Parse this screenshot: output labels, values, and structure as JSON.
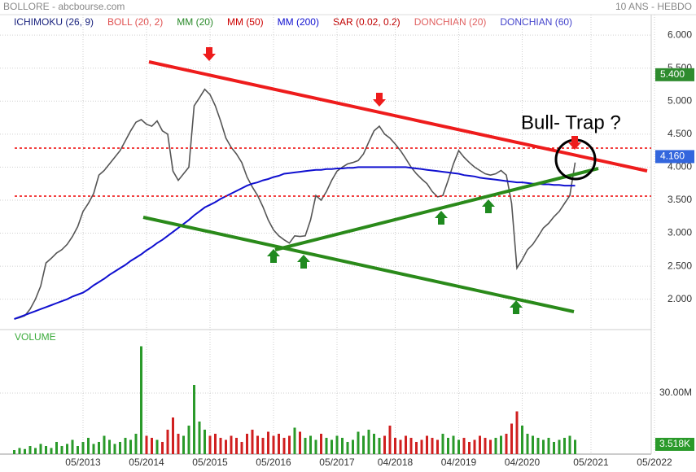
{
  "chart_data": {
    "type": "line",
    "title": "BOLLORE - abcbourse.com",
    "subtitle": "10 ANS - HEBDO",
    "annotation": "Bull- Trap ?",
    "indicators": [
      {
        "name": "ICHIMOKU (26, 9)",
        "color": "#1a237e"
      },
      {
        "name": "BOLL (20, 2)",
        "color": "#e05050"
      },
      {
        "name": "MM (20)",
        "color": "#2a8a2a"
      },
      {
        "name": "MM (50)",
        "color": "#cc0000"
      },
      {
        "name": "MM (200)",
        "color": "#1010d0"
      },
      {
        "name": "SAR (0.02, 0.2)",
        "color": "#c00000"
      },
      {
        "name": "DONCHIAN (20)",
        "color": "#e06060"
      },
      {
        "name": "DONCHIAN (60)",
        "color": "#4444cc"
      }
    ],
    "x": [
      "04/2012",
      "05/2012",
      "06/2012",
      "07/2012",
      "08/2012",
      "09/2012",
      "10/2012",
      "11/2012",
      "12/2012",
      "01/2013",
      "02/2013",
      "03/2013",
      "04/2013",
      "05/2013",
      "06/2013",
      "07/2013",
      "08/2013",
      "09/2013",
      "10/2013",
      "11/2013",
      "12/2013",
      "01/2014",
      "02/2014",
      "03/2014",
      "04/2014",
      "05/2014",
      "06/2014",
      "07/2014",
      "08/2014",
      "09/2014",
      "10/2014",
      "11/2014",
      "12/2014",
      "01/2015",
      "02/2015",
      "03/2015",
      "04/2015",
      "05/2015",
      "06/2015",
      "07/2015",
      "08/2015",
      "09/2015",
      "10/2015",
      "11/2015",
      "12/2015",
      "01/2016",
      "02/2016",
      "03/2016",
      "04/2016",
      "05/2016",
      "06/2016",
      "07/2016",
      "08/2016",
      "09/2016",
      "10/2016",
      "11/2016",
      "12/2016",
      "01/2017",
      "02/2017",
      "03/2017",
      "04/2017",
      "05/2017",
      "06/2017",
      "07/2017",
      "08/2017",
      "09/2017",
      "10/2017",
      "11/2017",
      "12/2017",
      "01/2018",
      "02/2018",
      "03/2018",
      "04/2018",
      "05/2018",
      "06/2018",
      "07/2018",
      "08/2018",
      "09/2018",
      "10/2018",
      "11/2018",
      "12/2018",
      "01/2019",
      "02/2019",
      "03/2019",
      "04/2019",
      "05/2019",
      "06/2019",
      "07/2019",
      "08/2019",
      "09/2019",
      "10/2019",
      "11/2019",
      "12/2019",
      "01/2020",
      "02/2020",
      "03/2020",
      "04/2020",
      "05/2020",
      "06/2020",
      "07/2020",
      "08/2020",
      "09/2020",
      "10/2020",
      "11/2020",
      "12/2020",
      "01/2021",
      "02/2021"
    ],
    "series": [
      {
        "color": "#555555",
        "values": [
          1.7,
          1.72,
          1.75,
          1.85,
          2.0,
          2.2,
          2.55,
          2.62,
          2.7,
          2.75,
          2.83,
          2.95,
          3.1,
          3.33,
          3.45,
          3.6,
          3.88,
          3.95,
          4.05,
          4.15,
          4.25,
          4.4,
          4.55,
          4.68,
          4.72,
          4.65,
          4.62,
          4.7,
          4.55,
          4.5,
          3.94,
          3.8,
          3.9,
          4.0,
          4.93,
          5.05,
          5.18,
          5.1,
          4.93,
          4.7,
          4.44,
          4.3,
          4.2,
          4.07,
          3.85,
          3.7,
          3.57,
          3.4,
          3.2,
          3.05,
          2.96,
          2.9,
          2.85,
          2.96,
          2.95,
          2.96,
          3.2,
          3.57,
          3.5,
          3.63,
          3.8,
          3.94,
          4.0,
          4.05,
          4.07,
          4.1,
          4.2,
          4.38,
          4.55,
          4.62,
          4.5,
          4.44,
          4.35,
          4.25,
          4.13,
          4.0,
          3.9,
          3.82,
          3.75,
          3.63,
          3.55,
          3.57,
          3.8,
          4.05,
          4.25,
          4.15,
          4.07,
          4.0,
          3.95,
          3.9,
          3.88,
          3.9,
          3.95,
          3.88,
          3.45,
          2.47,
          2.6,
          2.75,
          2.83,
          2.95,
          3.08,
          3.15,
          3.25,
          3.33,
          3.45,
          3.57,
          4.07
        ]
      },
      {
        "color": "#1010d0",
        "values": [
          1.7,
          1.73,
          1.76,
          1.79,
          1.82,
          1.85,
          1.88,
          1.91,
          1.94,
          1.97,
          2.0,
          2.04,
          2.07,
          2.1,
          2.15,
          2.21,
          2.26,
          2.31,
          2.37,
          2.42,
          2.47,
          2.52,
          2.58,
          2.63,
          2.68,
          2.74,
          2.79,
          2.85,
          2.9,
          2.96,
          3.02,
          3.08,
          3.14,
          3.2,
          3.27,
          3.33,
          3.39,
          3.43,
          3.47,
          3.52,
          3.56,
          3.6,
          3.64,
          3.68,
          3.72,
          3.75,
          3.77,
          3.8,
          3.82,
          3.85,
          3.87,
          3.9,
          3.91,
          3.92,
          3.93,
          3.94,
          3.95,
          3.96,
          3.96,
          3.97,
          3.97,
          3.98,
          3.98,
          3.99,
          3.99,
          4.0,
          4.0,
          4.0,
          4.0,
          4.0,
          4.0,
          4.0,
          4.0,
          4.0,
          4.0,
          3.99,
          3.98,
          3.97,
          3.96,
          3.95,
          3.94,
          3.93,
          3.92,
          3.91,
          3.9,
          3.88,
          3.87,
          3.86,
          3.84,
          3.83,
          3.82,
          3.81,
          3.8,
          3.79,
          3.78,
          3.77,
          3.77,
          3.76,
          3.75,
          3.75,
          3.74,
          3.74,
          3.73,
          3.73,
          3.72,
          3.72,
          3.72
        ]
      }
    ],
    "ylim": [
      1.54,
      6.31
    ],
    "yticks": [
      {
        "value": 2,
        "label": "2.000"
      },
      {
        "value": 2.5,
        "label": "2.500"
      },
      {
        "value": 3,
        "label": "3.000"
      },
      {
        "value": 3.5,
        "label": "3.500"
      },
      {
        "value": 4,
        "label": "4.000"
      },
      {
        "value": 4.5,
        "label": "4.500"
      },
      {
        "value": 5,
        "label": "5.000"
      },
      {
        "value": 5.5,
        "label": "5.500"
      },
      {
        "value": 6,
        "label": "6.000"
      }
    ],
    "xticks": [
      "05/2013",
      "05/2014",
      "05/2015",
      "05/2016",
      "05/2017",
      "04/2018",
      "04/2019",
      "04/2020",
      "05/2021",
      "05/2022"
    ],
    "grid": true,
    "last_labels": [
      {
        "value": 5.4,
        "label": "5.400",
        "color": "#2e8b2e"
      },
      {
        "value": 4.16,
        "label": "4.160",
        "color": "#3366dd"
      }
    ],
    "volume": {
      "label": "VOLUME",
      "values": [
        2000000.0,
        3000000.0,
        2500000.0,
        4000000.0,
        3000000.0,
        5000000.0,
        4000000.0,
        3000000.0,
        6000000.0,
        4000000.0,
        5000000.0,
        7000000.0,
        4000000.0,
        6000000.0,
        8000000.0,
        5000000.0,
        6000000.0,
        9000000.0,
        7000000.0,
        5000000.0,
        6000000.0,
        8000000.0,
        7000000.0,
        10000000.0,
        53000000.0,
        9000000.0,
        8000000.0,
        7000000.0,
        6000000.0,
        12000000.0,
        18000000.0,
        10000000.0,
        9000000.0,
        14000000.0,
        34000000.0,
        16000000.0,
        12000000.0,
        9000000.0,
        10000000.0,
        8000000.0,
        7000000.0,
        9000000.0,
        8000000.0,
        6000000.0,
        10000000.0,
        12000000.0,
        9000000.0,
        8000000.0,
        11000000.0,
        9000000.0,
        10000000.0,
        8000000.0,
        9000000.0,
        13000000.0,
        11000000.0,
        8000000.0,
        9000000.0,
        7000000.0,
        10000000.0,
        8000000.0,
        7000000.0,
        9000000.0,
        8000000.0,
        6000000.0,
        7000000.0,
        11000000.0,
        9000000.0,
        12000000.0,
        10000000.0,
        8000000.0,
        9000000.0,
        14000000.0,
        8000000.0,
        7000000.0,
        9000000.0,
        8000000.0,
        6000000.0,
        7000000.0,
        9000000.0,
        8000000.0,
        7000000.0,
        10000000.0,
        8000000.0,
        9000000.0,
        7000000.0,
        8000000.0,
        6000000.0,
        7000000.0,
        9000000.0,
        8000000.0,
        7000000.0,
        8000000.0,
        9000000.0,
        10000000.0,
        15000000.0,
        21000000.0,
        14000000.0,
        10000000.0,
        9000000.0,
        8000000.0,
        7000000.0,
        8000000.0,
        6000000.0,
        7000000.0,
        8000000.0,
        9000000.0,
        7000000.0
      ],
      "ylim": [
        0,
        61200000
      ],
      "yticks": [
        {
          "value": 30000000,
          "label": "30.00M"
        }
      ],
      "last_label": {
        "value": 3518,
        "label": "3.518K"
      },
      "up_color": "#2a9a2a",
      "down_color": "#d02020"
    }
  }
}
